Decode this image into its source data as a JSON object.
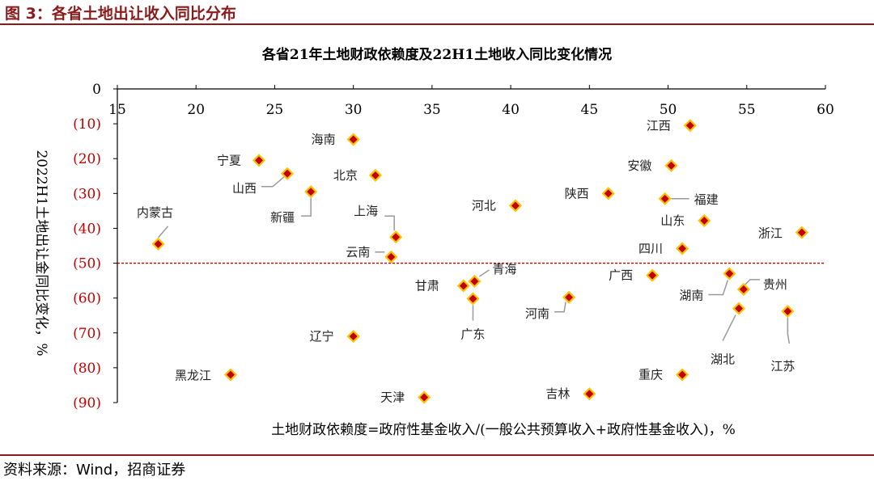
{
  "figure": {
    "title": "图 3：各省土地出让收入同比分布",
    "source": "资料来源：Wind，招商证券"
  },
  "chart_data": {
    "type": "scatter",
    "title": "各省21年土地财政依赖度及22H1土地收入同比变化情况",
    "xlabel": "土地财政依赖度=政府性基金收入/(一般公共预算收入+政府性基金收入)，%",
    "ylabel": "2022H1土地出让金同比变化，%",
    "xlim": [
      15,
      60
    ],
    "ylim": [
      -90,
      0
    ],
    "x_axis_position": "top",
    "x_ticks": [
      "15",
      "20",
      "25",
      "30",
      "35",
      "40",
      "45",
      "50",
      "55",
      "60"
    ],
    "y_ticks": [
      "0",
      "(10)",
      "(20)",
      "(30)",
      "(40)",
      "(50)",
      "(60)",
      "(70)",
      "(80)",
      "(90)"
    ],
    "grid": false,
    "marker_color": "#c00000",
    "marker_edge_color": "#ffc000",
    "reference_line": {
      "y": -50,
      "color": "#c00000",
      "style": "dashed"
    },
    "points": [
      {
        "name": "内蒙古",
        "x": 17.6,
        "y": -44.5
      },
      {
        "name": "黑龙江",
        "x": 22.2,
        "y": -82.0
      },
      {
        "name": "宁夏",
        "x": 24.0,
        "y": -20.5
      },
      {
        "name": "山西",
        "x": 25.8,
        "y": -24.3
      },
      {
        "name": "新疆",
        "x": 27.3,
        "y": -29.5
      },
      {
        "name": "海南",
        "x": 30.0,
        "y": -14.5
      },
      {
        "name": "辽宁",
        "x": 30.0,
        "y": -71.0
      },
      {
        "name": "北京",
        "x": 31.4,
        "y": -24.8
      },
      {
        "name": "云南",
        "x": 32.4,
        "y": -48.2
      },
      {
        "name": "上海",
        "x": 32.7,
        "y": -42.5
      },
      {
        "name": "天津",
        "x": 34.5,
        "y": -88.5
      },
      {
        "name": "甘肃",
        "x": 37.0,
        "y": -56.5
      },
      {
        "name": "青海",
        "x": 37.7,
        "y": -55.2
      },
      {
        "name": "广东",
        "x": 37.6,
        "y": -60.2
      },
      {
        "name": "河北",
        "x": 40.3,
        "y": -33.5
      },
      {
        "name": "河南",
        "x": 43.7,
        "y": -59.8
      },
      {
        "name": "吉林",
        "x": 45.0,
        "y": -87.5
      },
      {
        "name": "陕西",
        "x": 46.2,
        "y": -30.0
      },
      {
        "name": "广西",
        "x": 49.0,
        "y": -53.5
      },
      {
        "name": "安徽",
        "x": 50.2,
        "y": -22.0
      },
      {
        "name": "福建",
        "x": 49.8,
        "y": -31.5
      },
      {
        "name": "江西",
        "x": 51.4,
        "y": -10.5
      },
      {
        "name": "山东",
        "x": 52.3,
        "y": -37.8
      },
      {
        "name": "四川",
        "x": 50.9,
        "y": -45.8
      },
      {
        "name": "重庆",
        "x": 50.9,
        "y": -82.0
      },
      {
        "name": "湖南",
        "x": 53.9,
        "y": -53.0
      },
      {
        "name": "贵州",
        "x": 54.8,
        "y": -57.5
      },
      {
        "name": "湖北",
        "x": 54.5,
        "y": -63.0
      },
      {
        "name": "浙江",
        "x": 58.5,
        "y": -41.2
      },
      {
        "name": "江苏",
        "x": 57.6,
        "y": -63.8
      }
    ]
  }
}
